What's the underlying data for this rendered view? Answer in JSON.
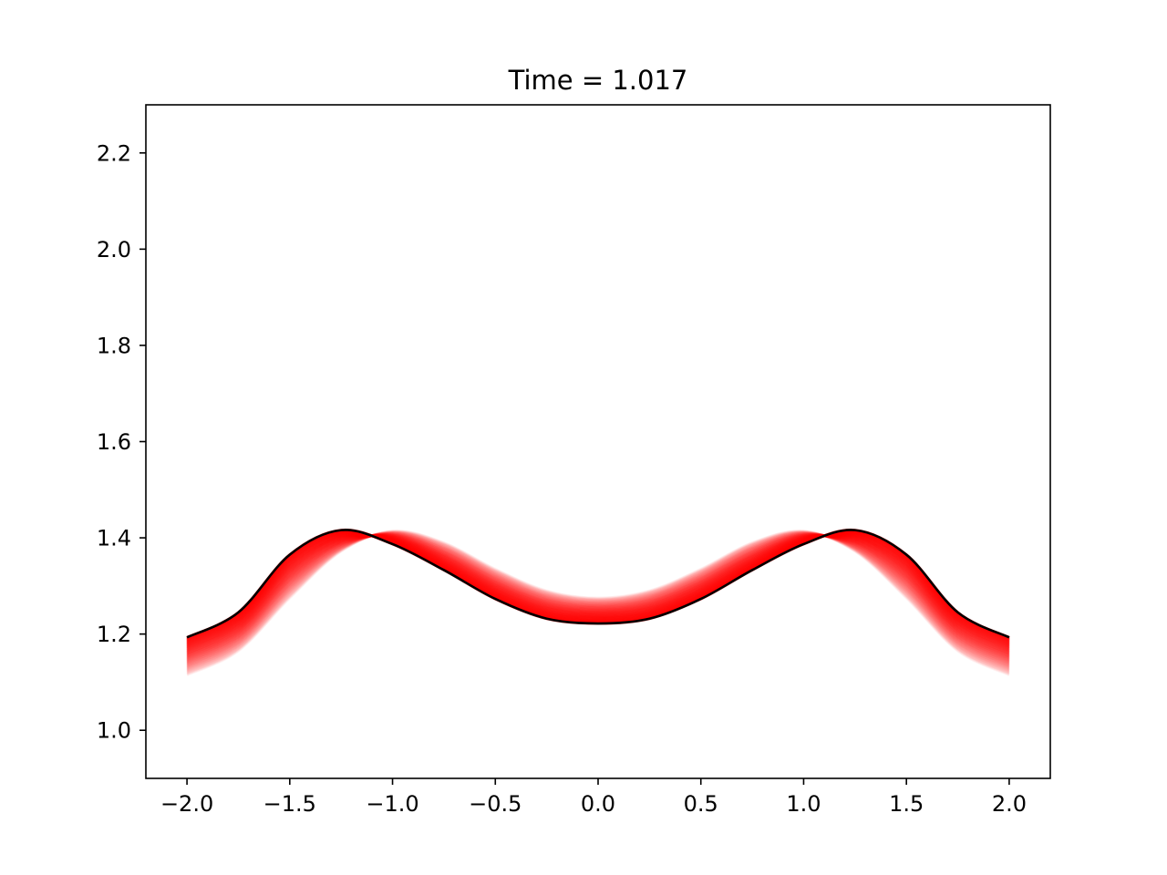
{
  "chart_data": {
    "type": "line",
    "title": "Time = 1.017",
    "xlabel": "",
    "ylabel": "",
    "xlim": [
      -2.2,
      2.2
    ],
    "ylim": [
      0.9,
      2.3
    ],
    "xticks": [
      -2.0,
      -1.5,
      -1.0,
      -0.5,
      0.0,
      0.5,
      1.0,
      1.5,
      2.0
    ],
    "xtick_labels": [
      "−2.0",
      "−1.5",
      "−1.0",
      "−0.5",
      "0.0",
      "0.5",
      "1.0",
      "1.5",
      "2.0"
    ],
    "yticks": [
      1.0,
      1.2,
      1.4,
      1.6,
      1.8,
      2.0,
      2.2
    ],
    "ytick_labels": [
      "1.0",
      "1.2",
      "1.4",
      "1.6",
      "1.8",
      "2.0",
      "2.2"
    ],
    "grid": false,
    "colors": {
      "current": "#000000",
      "history": "#ff0000"
    },
    "current_series": {
      "x": [
        -2.0,
        -1.75,
        -1.5,
        -1.25,
        -1.0,
        -0.75,
        -0.5,
        -0.25,
        0.0,
        0.25,
        0.5,
        0.75,
        1.0,
        1.25,
        1.5,
        1.75,
        2.0
      ],
      "y": [
        1.193,
        1.245,
        1.365,
        1.416,
        1.387,
        1.333,
        1.273,
        1.232,
        1.222,
        1.232,
        1.273,
        1.333,
        1.387,
        1.416,
        1.365,
        1.245,
        1.193
      ]
    },
    "history_band": {
      "snapshots": 40,
      "earliest": {
        "x": [
          -2.0,
          -1.75,
          -1.5,
          -1.25,
          -1.0,
          -0.75,
          -0.5,
          -0.25,
          0.0,
          0.25,
          0.5,
          0.75,
          1.0,
          1.25,
          1.5,
          1.75,
          2.0
        ],
        "y": [
          1.115,
          1.165,
          1.275,
          1.372,
          1.414,
          1.39,
          1.335,
          1.29,
          1.275,
          1.29,
          1.335,
          1.39,
          1.414,
          1.372,
          1.275,
          1.165,
          1.115
        ]
      }
    }
  }
}
